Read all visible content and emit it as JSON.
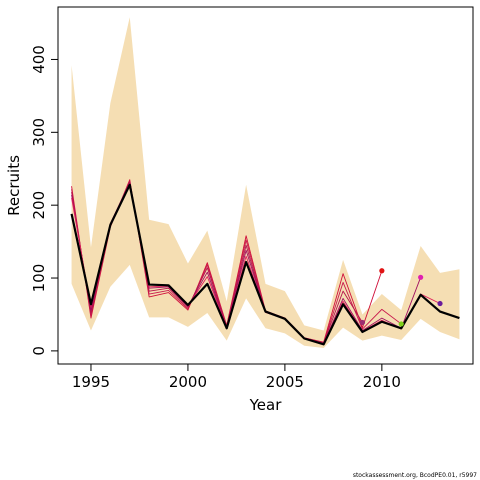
{
  "colors": {
    "band": "#f5deb3",
    "main_line": "#000000",
    "retro_lines": [
      "#d0103a",
      "#c8184d",
      "#b4124a",
      "#a01060",
      "#e0205a"
    ],
    "markers": [
      "#9b2d70",
      "#e11313",
      "#7fce1a",
      "#e020b0",
      "#6a1b9a"
    ]
  },
  "chart_data": {
    "type": "line",
    "title": "",
    "xlabel": "Year",
    "ylabel": "Recruits",
    "xlim": [
      1993.3,
      2014.7
    ],
    "ylim": [
      -18,
      472
    ],
    "xticks": [
      1995,
      2000,
      2005,
      2010
    ],
    "yticks": [
      0,
      100,
      200,
      300,
      400
    ],
    "grid": false,
    "legend": "none",
    "uncertainty_band": {
      "x": [
        1994,
        1995,
        1996,
        1997,
        1998,
        1999,
        2000,
        2001,
        2002,
        2003,
        2004,
        2005,
        2006,
        2007,
        2008,
        2009,
        2010,
        2011,
        2012,
        2013,
        2014
      ],
      "upper": [
        392,
        142,
        340,
        458,
        180,
        174,
        120,
        165,
        68,
        228,
        92,
        82,
        35,
        28,
        125,
        50,
        78,
        56,
        144,
        107,
        112
      ],
      "lower": [
        92,
        28,
        88,
        118,
        46,
        46,
        33,
        52,
        14,
        72,
        31,
        24,
        7,
        4,
        32,
        14,
        21,
        15,
        44,
        26,
        16
      ]
    },
    "series": [
      {
        "x": [
          1994,
          1995,
          1996,
          1997,
          1998,
          1999,
          2000,
          2001,
          2002,
          2003,
          2004,
          2005,
          2006,
          2007,
          2008,
          2009,
          2010,
          2011,
          2012,
          2013,
          2014
        ],
        "values": [
          188,
          64,
          173,
          228,
          91,
          90,
          63,
          92,
          31,
          122,
          54,
          44,
          17,
          9,
          64,
          26,
          40,
          31,
          77,
          54,
          45
        ]
      }
    ],
    "retrospective_series": [
      {
        "x": [
          1994,
          1995,
          1996,
          1997,
          1998,
          1999,
          2000,
          2001,
          2002,
          2003,
          2004,
          2005,
          2006,
          2007,
          2008,
          2009,
          2010
        ],
        "values": [
          226,
          45,
          170,
          235,
          74,
          80,
          56,
          121,
          35,
          158,
          55,
          45,
          18,
          12,
          106,
          32,
          110
        ]
      },
      {
        "x": [
          1994,
          1995,
          1996,
          1997,
          1998,
          1999,
          2000,
          2001,
          2002,
          2003,
          2004,
          2005,
          2006,
          2007,
          2008,
          2009,
          2010,
          2011
        ],
        "values": [
          222,
          48,
          172,
          233,
          78,
          83,
          58,
          118,
          34,
          152,
          54,
          45,
          18,
          11,
          94,
          30,
          57,
          37
        ]
      },
      {
        "x": [
          1994,
          1995,
          1996,
          1997,
          1998,
          1999,
          2000,
          2001,
          2002,
          2003,
          2004,
          2005,
          2006,
          2007,
          2008,
          2009
        ],
        "values": [
          218,
          52,
          174,
          232,
          82,
          86,
          60,
          114,
          33,
          145,
          53,
          44,
          18,
          11,
          82,
          39
        ]
      },
      {
        "x": [
          1994,
          1995,
          1996,
          1997,
          1998,
          1999,
          2000,
          2001,
          2002,
          2003,
          2004,
          2005,
          2006,
          2007,
          2008,
          2009,
          2010,
          2011,
          2012
        ],
        "values": [
          214,
          56,
          175,
          231,
          86,
          88,
          61,
          108,
          32,
          138,
          53,
          44,
          17,
          10,
          72,
          28,
          45,
          31,
          101
        ]
      },
      {
        "x": [
          1994,
          1995,
          1996,
          1997,
          1998,
          1999,
          2000,
          2001,
          2002,
          2003,
          2004,
          2005,
          2006,
          2007,
          2008,
          2009,
          2010,
          2011,
          2012,
          2013
        ],
        "values": [
          210,
          60,
          174,
          230,
          88,
          89,
          62,
          102,
          32,
          130,
          53,
          44,
          17,
          10,
          68,
          27,
          42,
          30,
          78,
          65
        ]
      }
    ],
    "terminal_points": [
      {
        "x": 2009,
        "y": 39
      },
      {
        "x": 2010,
        "y": 110
      },
      {
        "x": 2011,
        "y": 37
      },
      {
        "x": 2012,
        "y": 101
      },
      {
        "x": 2013,
        "y": 65
      }
    ]
  },
  "credit": "stockassessment.org, BcodPE0.01, r5997"
}
